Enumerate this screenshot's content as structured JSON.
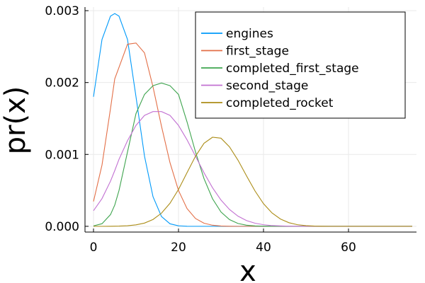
{
  "chart_data": {
    "type": "line",
    "title": "",
    "xlabel": "x",
    "ylabel": "pr(x)",
    "xlim": [
      -2,
      76
    ],
    "ylim": [
      -8e-05,
      0.00305
    ],
    "x_ticks": [
      0,
      20,
      40,
      60
    ],
    "x_tick_labels": [
      "0",
      "20",
      "40",
      "60"
    ],
    "y_ticks": [
      0.0,
      0.001,
      0.002,
      0.003
    ],
    "y_tick_labels": [
      "0.000",
      "0.001",
      "0.002",
      "0.003"
    ],
    "grid": true,
    "legend_position": "top-right",
    "x": [
      0,
      2,
      4,
      5,
      6,
      8,
      10,
      12,
      14,
      16,
      18,
      20,
      22,
      24,
      26,
      28,
      30,
      32,
      34,
      36,
      38,
      40,
      42,
      44,
      46,
      48,
      50,
      52,
      54,
      56,
      58,
      60,
      62,
      64,
      66,
      68,
      70,
      72,
      74,
      75
    ],
    "series": [
      {
        "name": "engines",
        "color": "#009AFA",
        "values": [
          0.001802,
          0.002599,
          0.002924,
          0.00296,
          0.002924,
          0.002599,
          0.001802,
          0.000976,
          0.000412,
          0.000136,
          3.5e-05,
          7e-06,
          1e-06,
          0,
          0,
          0,
          0,
          0,
          0,
          0,
          0,
          0,
          0,
          0,
          0,
          0,
          0,
          0,
          0,
          0,
          0,
          0,
          0,
          0,
          0,
          0,
          0,
          0,
          0,
          0
        ]
      },
      {
        "name": "first_stage",
        "color": "#E36F47",
        "values": [
          0.000346,
          0.000853,
          0.001638,
          0.002052,
          0.002212,
          0.002533,
          0.00255,
          0.002413,
          0.00194,
          0.001392,
          0.000885,
          0.000498,
          0.000248,
          0.000109,
          4.3e-05,
          1.5e-05,
          4e-06,
          1e-06,
          0,
          0,
          0,
          0,
          0,
          0,
          0,
          0,
          0,
          0,
          0,
          0,
          0,
          0,
          0,
          0,
          0,
          0,
          0,
          0,
          0,
          0
        ]
      },
      {
        "name": "completed_first_stage",
        "color": "#3EA44E",
        "values": [
          6e-06,
          3.6e-05,
          0.000163,
          0.000296,
          0.000498,
          0.001035,
          0.001569,
          0.001835,
          0.001956,
          0.001994,
          0.001956,
          0.001835,
          0.001454,
          0.001035,
          0.000664,
          0.000384,
          0.000199,
          9.3e-05,
          3.9e-05,
          1.5e-05,
          5e-06,
          2e-06,
          0,
          0,
          0,
          0,
          0,
          0,
          0,
          0,
          0,
          0,
          0,
          0,
          0,
          0,
          0,
          0,
          0,
          0
        ]
      },
      {
        "name": "second_stage",
        "color": "#C271D2",
        "values": [
          0.000217,
          0.000386,
          0.000628,
          0.000775,
          0.000932,
          0.001191,
          0.001404,
          0.001543,
          0.001596,
          0.001596,
          0.001543,
          0.001404,
          0.001204,
          0.000975,
          0.000745,
          0.000537,
          0.000365,
          0.000234,
          0.000141,
          8e-05,
          4.3e-05,
          2.2e-05,
          1e-05,
          5e-06,
          2e-06,
          1e-06,
          0,
          0,
          0,
          0,
          0,
          0,
          0,
          0,
          0,
          0,
          0,
          0,
          0,
          0
        ]
      },
      {
        "name": "completed_rocket",
        "color": "#AC8D18",
        "values": [
          0,
          0,
          1e-06,
          2e-06,
          3e-06,
          8e-06,
          2e-05,
          4.5e-05,
          9.5e-05,
          0.000183,
          0.000321,
          0.000513,
          0.000745,
          0.000975,
          0.001155,
          0.001239,
          0.001226,
          0.001105,
          0.00092,
          0.000702,
          0.000492,
          0.000315,
          0.000186,
          0.000101,
          5e-05,
          2.2e-05,
          9e-06,
          3e-06,
          1e-06,
          0,
          0,
          0,
          0,
          0,
          0,
          0,
          0,
          0,
          0,
          0
        ]
      }
    ]
  }
}
